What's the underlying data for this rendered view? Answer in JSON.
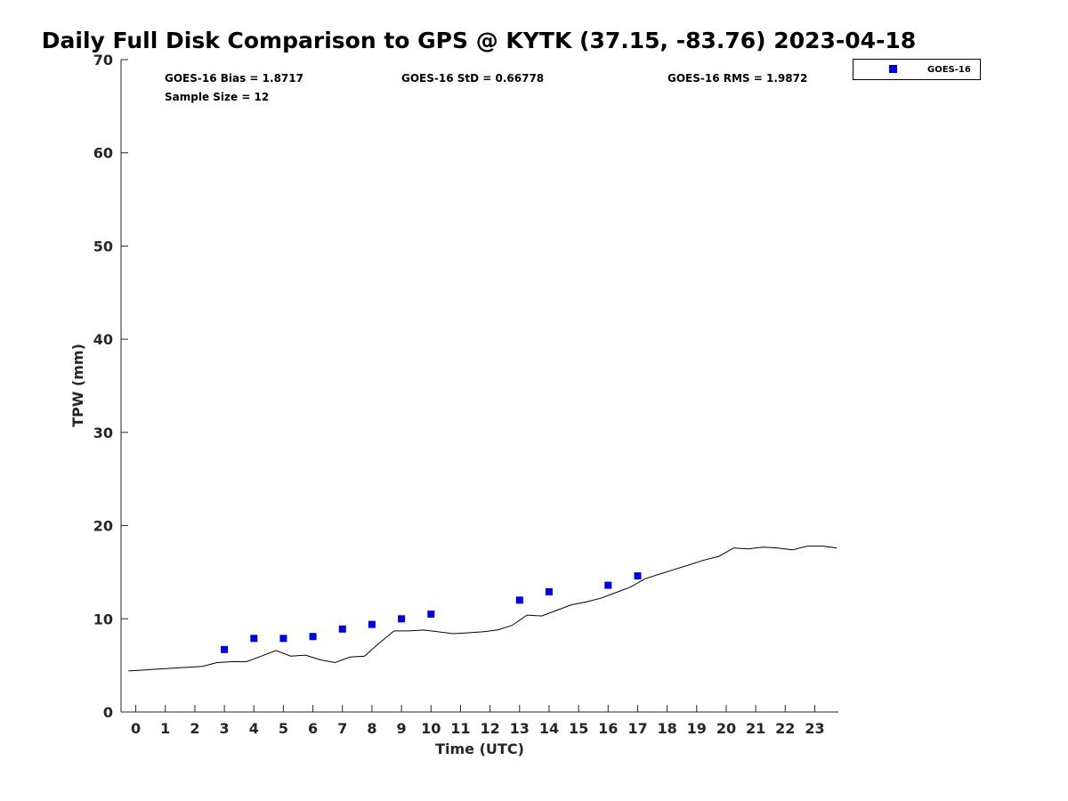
{
  "chart_data": {
    "type": "scatter",
    "title": "Daily Full Disk Comparison to GPS @ KYTK (37.15, -83.76) 2023-04-18",
    "xlabel": "Time (UTC)",
    "ylabel": "TPW (mm)",
    "xlim": [
      -0.5,
      23.8
    ],
    "ylim": [
      0,
      70
    ],
    "x_ticks": [
      0,
      1,
      2,
      3,
      4,
      5,
      6,
      7,
      8,
      9,
      10,
      11,
      12,
      13,
      14,
      15,
      16,
      17,
      18,
      19,
      20,
      21,
      22,
      23
    ],
    "x_tick_labels": [
      "0",
      "1",
      "2",
      "3",
      "4",
      "5",
      "6",
      "7",
      "8",
      "9",
      "10",
      "11",
      "12",
      "13",
      "14",
      "15",
      "16",
      "17",
      "18",
      "19",
      "20",
      "21",
      "22",
      "23"
    ],
    "y_ticks": [
      0,
      10,
      20,
      30,
      40,
      50,
      60,
      70
    ],
    "y_tick_labels": [
      "0",
      "10",
      "20",
      "30",
      "40",
      "50",
      "60",
      "70"
    ],
    "grid": false,
    "legend_position": "top-right",
    "stats": [
      {
        "text": "GOES-16 Bias = 1.8717"
      },
      {
        "text": "GOES-16 StD = 0.66778"
      },
      {
        "text": "GOES-16 RMS = 1.9872"
      },
      {
        "text": "Sample Size = 12"
      }
    ],
    "series": [
      {
        "name": "GOES-16",
        "type": "scatter",
        "marker": "square",
        "color": "#0000e6",
        "x": [
          3,
          4,
          5,
          6,
          7,
          8,
          9,
          10,
          13,
          14,
          16,
          17
        ],
        "y": [
          6.7,
          7.9,
          7.9,
          8.1,
          8.9,
          9.4,
          10.0,
          10.5,
          12.0,
          12.9,
          13.6,
          14.6
        ]
      },
      {
        "type": "line",
        "color": "#000000",
        "x": [
          -0.25,
          0.25,
          0.75,
          1.25,
          1.75,
          2.25,
          2.75,
          3.25,
          3.75,
          4.25,
          4.75,
          5.25,
          5.75,
          6.25,
          6.75,
          7.25,
          7.75,
          8.25,
          8.75,
          9.25,
          9.75,
          10.25,
          10.75,
          11.25,
          11.75,
          12.25,
          12.75,
          13.25,
          13.75,
          14.25,
          14.75,
          15.25,
          15.75,
          16.25,
          16.75,
          17.25,
          17.75,
          18.25,
          18.75,
          19.25,
          19.75,
          20.25,
          20.75,
          21.25,
          21.75,
          22.25,
          22.75,
          23.25,
          23.75
        ],
        "y": [
          4.4,
          4.5,
          4.6,
          4.7,
          4.8,
          4.9,
          5.3,
          5.4,
          5.4,
          6.0,
          6.6,
          6.0,
          6.1,
          5.6,
          5.3,
          5.9,
          6.0,
          7.4,
          8.7,
          8.7,
          8.8,
          8.6,
          8.4,
          8.5,
          8.6,
          8.8,
          9.3,
          10.4,
          10.3,
          10.9,
          11.5,
          11.8,
          12.2,
          12.8,
          13.4,
          14.3,
          14.8,
          15.3,
          15.8,
          16.3,
          16.7,
          17.6,
          17.5,
          17.7,
          17.6,
          17.4,
          17.8,
          17.8,
          17.6
        ]
      }
    ]
  }
}
